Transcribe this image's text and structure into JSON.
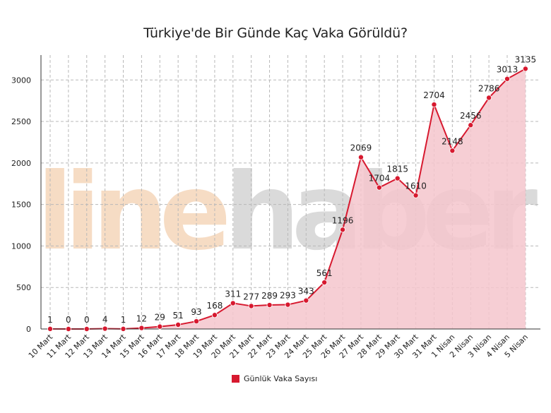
{
  "chart_data": {
    "type": "area",
    "title": "Türkiye'de Bir Günde Kaç Vaka Görüldü?",
    "categories": [
      "10 Mart",
      "11 Mart",
      "12 Mart",
      "13 Mart",
      "14 Mart",
      "15 Mart",
      "16 Mart",
      "17 Mart",
      "18 Mart",
      "19 Mart",
      "20 Mart",
      "21 Mart",
      "22 Mart",
      "23 Mart",
      "24 Mart",
      "25 Mart",
      "26 Mart",
      "27 Mart",
      "28 Mart",
      "29 Mart",
      "30 Mart",
      "31 Mart",
      "1 Nisan",
      "2 Nisan",
      "3 Nisan",
      "4 Nisan",
      "5 Nisan"
    ],
    "series": [
      {
        "name": "Günlük Vaka Sayısı",
        "values": [
          1,
          0,
          0,
          4,
          1,
          12,
          29,
          51,
          93,
          168,
          311,
          277,
          289,
          293,
          343,
          561,
          1196,
          2069,
          1704,
          1815,
          1610,
          2704,
          2148,
          2456,
          2786,
          3013,
          3135
        ]
      }
    ],
    "yticks": [
      0,
      500,
      1000,
      1500,
      2000,
      2500,
      3000
    ],
    "ylim": [
      0,
      3300
    ],
    "grid": true,
    "legend_position": "bottom",
    "data_labels": true,
    "watermark": {
      "part1": "line",
      "part2": "haber"
    },
    "colors": {
      "line": "#d7192f",
      "fill": "#f5c6cc",
      "grid": "#b8b8b8",
      "watermark_1": "#f6dcc4",
      "watermark_2": "#d4d4d4"
    }
  }
}
